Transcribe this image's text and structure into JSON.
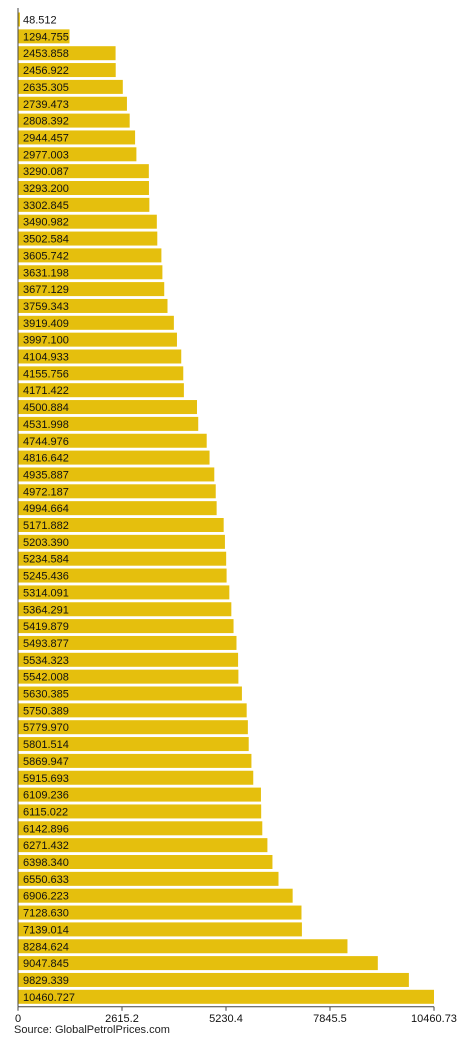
{
  "chart_data": {
    "type": "bar",
    "orientation": "horizontal",
    "values": [
      48.512,
      1294.755,
      2453.858,
      2456.922,
      2635.305,
      2739.473,
      2808.392,
      2944.457,
      2977.003,
      3290.087,
      3293.2,
      3302.845,
      3490.982,
      3502.584,
      3605.742,
      3631.198,
      3677.129,
      3759.343,
      3919.409,
      3997.1,
      4104.933,
      4155.756,
      4171.422,
      4500.884,
      4531.998,
      4744.976,
      4816.642,
      4935.887,
      4972.187,
      4994.664,
      5171.882,
      5203.39,
      5234.584,
      5245.436,
      5314.091,
      5364.291,
      5419.879,
      5493.877,
      5534.323,
      5542.008,
      5630.385,
      5750.389,
      5779.97,
      5801.514,
      5869.947,
      5915.693,
      6109.236,
      6115.022,
      6142.896,
      6271.432,
      6398.34,
      6550.633,
      6906.223,
      7128.63,
      7139.014,
      8284.624,
      9047.845,
      9829.339,
      10460.727
    ],
    "value_labels": [
      "48.512",
      "1294.755",
      "2453.858",
      "2456.922",
      "2635.305",
      "2739.473",
      "2808.392",
      "2944.457",
      "2977.003",
      "3290.087",
      "3293.200",
      "3302.845",
      "3490.982",
      "3502.584",
      "3605.742",
      "3631.198",
      "3677.129",
      "3759.343",
      "3919.409",
      "3997.100",
      "4104.933",
      "4155.756",
      "4171.422",
      "4500.884",
      "4531.998",
      "4744.976",
      "4816.642",
      "4935.887",
      "4972.187",
      "4994.664",
      "5171.882",
      "5203.390",
      "5234.584",
      "5245.436",
      "5314.091",
      "5364.291",
      "5419.879",
      "5493.877",
      "5534.323",
      "5542.008",
      "5630.385",
      "5750.389",
      "5779.970",
      "5801.514",
      "5869.947",
      "5915.693",
      "6109.236",
      "6115.022",
      "6142.896",
      "6271.432",
      "6398.340",
      "6550.633",
      "6906.223",
      "7128.630",
      "7139.014",
      "8284.624",
      "9047.845",
      "9829.339",
      "10460.727"
    ],
    "x_ticks": [
      0,
      2615.2,
      5230.4,
      7845.5,
      10460.73
    ],
    "x_tick_labels": [
      "0",
      "2615.2",
      "5230.4",
      "7845.5",
      "10460.73"
    ],
    "xlim": [
      0,
      10460.73
    ],
    "grid": false,
    "bar_color": "#e5bf0d",
    "title": "",
    "xlabel": "",
    "ylabel": ""
  },
  "footer": {
    "source": "Source:  GlobalPetrolPrices.com"
  }
}
